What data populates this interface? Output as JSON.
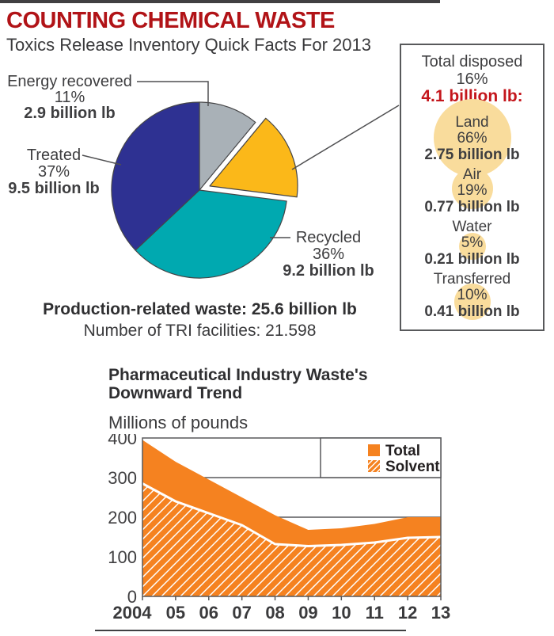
{
  "page": {
    "title": "COUNTING CHEMICAL WASTE",
    "subtitle": "Toxics Release Inventory Quick Facts For 2013"
  },
  "colors": {
    "red_dark": "#B11317",
    "red_bright": "#C4161C",
    "text": "#3E3E40",
    "pie_blue": "#2E3192",
    "pie_teal": "#00A9B0",
    "pie_yellow": "#FBB819",
    "pie_gray": "#A9B1B7",
    "bubble_yellow": "#F9DC9C",
    "orange": "#F58220",
    "frame_gray": "#58595B"
  },
  "pie_labels": {
    "energy": {
      "name": "Energy recovered",
      "pct": "11%",
      "amount": "2.9 billion lb"
    },
    "treated": {
      "name": "Treated",
      "pct": "37%",
      "amount": "9.5 billion lb"
    },
    "recycled": {
      "name": "Recycled",
      "pct": "36%",
      "amount": "9.2 billion lb"
    }
  },
  "disposal_panel": {
    "title": "Total disposed",
    "pct": "16%",
    "amount": "4.1 billion lb:",
    "items": [
      {
        "name": "Land",
        "pct": "66%",
        "amount": "2.75 billion lb"
      },
      {
        "name": "Air",
        "pct": "19%",
        "amount": "0.77 billion lb"
      },
      {
        "name": "Water",
        "pct": "5%",
        "amount": "0.21 billion lb"
      },
      {
        "name": "Transferred",
        "pct": "10%",
        "amount": "0.41 billion lb"
      }
    ]
  },
  "summary": {
    "production": "Production-related waste: 25.6 billion lb",
    "facilities": "Number of TRI facilities: 21.598"
  },
  "trend": {
    "title_line1": "Pharmaceutical Industry Waste's",
    "title_line2": "Downward Trend",
    "ylabel": "Millions of pounds"
  },
  "chart_data": [
    {
      "type": "pie",
      "title": "Toxics Release Inventory Quick Facts For 2013",
      "units": "billion lb",
      "start_angle_deg": 0,
      "direction": "clockwise",
      "slices": [
        {
          "label": "Energy recovered",
          "pct": 11,
          "value_billion_lb": 2.9,
          "color": "#A9B1B7",
          "exploded": false
        },
        {
          "label": "Total disposed",
          "pct": 16,
          "value_billion_lb": 4.1,
          "color": "#FBB819",
          "exploded": true
        },
        {
          "label": "Recycled",
          "pct": 36,
          "value_billion_lb": 9.2,
          "color": "#00A9B0",
          "exploded": false
        },
        {
          "label": "Treated",
          "pct": 37,
          "value_billion_lb": 9.5,
          "color": "#2E3192",
          "exploded": false
        }
      ],
      "annotations": [
        "Production-related waste: 25.6 billion lb",
        "Number of TRI facilities: 21.598"
      ]
    },
    {
      "type": "pie",
      "title": "Total disposed 16% 4.1 billion lb breakdown",
      "units": "billion lb",
      "categories": [
        "Land",
        "Air",
        "Water",
        "Transferred"
      ],
      "values_pct": [
        66,
        19,
        5,
        10
      ],
      "values_billion_lb": [
        2.75,
        0.77,
        0.21,
        0.41
      ]
    },
    {
      "type": "area",
      "title": "Pharmaceutical Industry Waste's Downward Trend",
      "ylabel": "Millions of pounds",
      "categories": [
        "2004",
        "05",
        "06",
        "07",
        "08",
        "09",
        "10",
        "11",
        "12",
        "13"
      ],
      "series": [
        {
          "name": "Total",
          "style": "solid",
          "values": [
            395,
            340,
            295,
            250,
            205,
            168,
            172,
            183,
            200,
            200
          ]
        },
        {
          "name": "Solvent",
          "style": "hatched",
          "values": [
            285,
            240,
            210,
            180,
            132,
            127,
            130,
            136,
            148,
            150
          ]
        }
      ],
      "ylim": [
        0,
        400
      ],
      "yticks": [
        0,
        100,
        200,
        300,
        400
      ],
      "gridlines": [
        200,
        300
      ],
      "legend_position": "top-right"
    }
  ]
}
